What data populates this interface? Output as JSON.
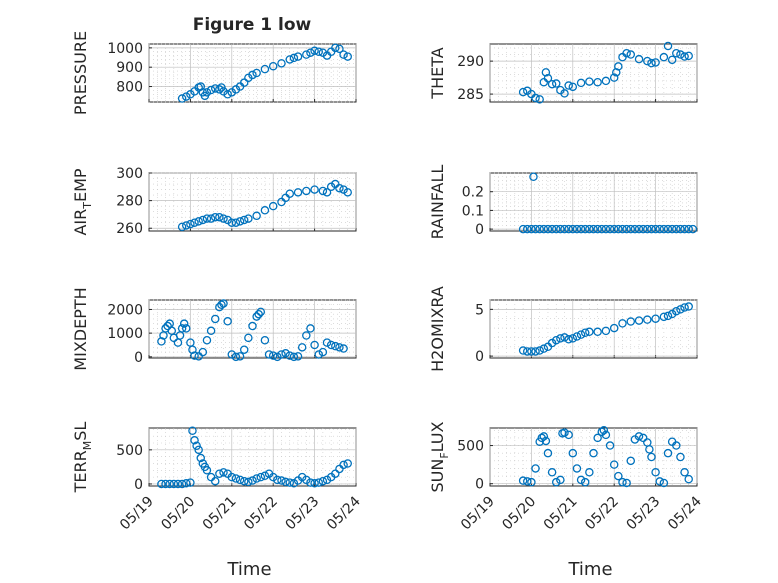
{
  "figure_title": "Figure 1 low",
  "x_axis_label": "Time",
  "x_tick_labels": [
    "05/19",
    "05/20",
    "05/21",
    "05/22",
    "05/23",
    "05/24"
  ],
  "marker_color": "#0072bd",
  "chart_data": [
    {
      "type": "scatter",
      "id": "pressure",
      "title": "Figure 1 low",
      "ylabel": "PRESSURE",
      "xlabel": "",
      "grid": true,
      "xlim": [
        "05/19",
        "05/24"
      ],
      "ylim": [
        720,
        1020
      ],
      "yticks": [
        800,
        900,
        1000
      ],
      "ytick_labels": [
        "800",
        "900",
        "1000"
      ],
      "series": [
        {
          "x": [
            0.8,
            0.9,
            1.0,
            1.1,
            1.2,
            1.25,
            1.3,
            1.35,
            1.4,
            1.5,
            1.6,
            1.7,
            1.75,
            1.8,
            1.9,
            2.0,
            2.1,
            2.2,
            2.3,
            2.4,
            2.5,
            2.6,
            2.8,
            3.0,
            3.2,
            3.4,
            3.5,
            3.6,
            3.8,
            3.9,
            4.0,
            4.1,
            4.2,
            4.3,
            4.4,
            4.5,
            4.6,
            4.7,
            4.8
          ],
          "y": [
            738,
            748,
            760,
            775,
            795,
            800,
            770,
            752,
            770,
            782,
            790,
            785,
            795,
            775,
            760,
            770,
            785,
            800,
            820,
            845,
            860,
            870,
            890,
            905,
            920,
            940,
            948,
            955,
            965,
            975,
            985,
            980,
            975,
            960,
            980,
            1000,
            995,
            965,
            955
          ]
        }
      ]
    },
    {
      "type": "scatter",
      "id": "theta",
      "ylabel": "THETA",
      "xlabel": "",
      "grid": true,
      "xlim": [
        "05/19",
        "05/24"
      ],
      "ylim": [
        283.8,
        292.6
      ],
      "yticks": [
        285,
        290
      ],
      "ytick_labels": [
        "285",
        "290"
      ],
      "series": [
        {
          "x": [
            0.8,
            0.9,
            1.0,
            1.1,
            1.2,
            1.3,
            1.35,
            1.4,
            1.5,
            1.6,
            1.7,
            1.8,
            1.9,
            2.0,
            2.2,
            2.4,
            2.6,
            2.8,
            3.0,
            3.05,
            3.1,
            3.2,
            3.3,
            3.4,
            3.6,
            3.8,
            3.9,
            4.0,
            4.2,
            4.3,
            4.4,
            4.5,
            4.6,
            4.7,
            4.8
          ],
          "y": [
            285.3,
            285.5,
            285.0,
            284.4,
            284.2,
            286.8,
            288.3,
            287.4,
            286.5,
            286.6,
            285.6,
            285.1,
            286.3,
            286.1,
            286.7,
            286.9,
            286.8,
            287.0,
            287.5,
            288.3,
            289.2,
            290.6,
            291.2,
            291.0,
            290.3,
            290.0,
            289.7,
            289.8,
            290.6,
            292.3,
            290.2,
            291.2,
            291.0,
            290.7,
            290.8
          ]
        }
      ]
    },
    {
      "type": "scatter",
      "id": "air-temp",
      "ylabel": "AIR_TEMP",
      "ylabel_main": "AIR",
      "ylabel_sub": "T",
      "ylabel_rest": "EMP",
      "xlabel": "",
      "grid": true,
      "xlim": [
        "05/19",
        "05/24"
      ],
      "ylim": [
        258,
        300
      ],
      "yticks": [
        260,
        280,
        300
      ],
      "ytick_labels": [
        "260",
        "280",
        "300"
      ],
      "series": [
        {
          "x": [
            0.8,
            0.9,
            1.0,
            1.1,
            1.2,
            1.3,
            1.4,
            1.5,
            1.6,
            1.7,
            1.8,
            1.9,
            2.0,
            2.1,
            2.2,
            2.3,
            2.4,
            2.6,
            2.8,
            3.0,
            3.2,
            3.3,
            3.4,
            3.6,
            3.8,
            4.0,
            4.2,
            4.3,
            4.4,
            4.5,
            4.6,
            4.7,
            4.8
          ],
          "y": [
            261,
            262,
            263,
            264,
            265,
            266,
            267,
            267,
            268,
            268,
            267,
            266,
            264,
            264,
            265,
            266,
            267,
            269,
            273,
            276,
            279,
            282,
            285,
            286,
            287,
            288,
            287,
            286,
            290,
            292,
            289,
            288,
            286
          ]
        }
      ]
    },
    {
      "type": "scatter",
      "id": "rainfall",
      "ylabel": "RAINFALL",
      "xlabel": "",
      "grid": true,
      "xlim": [
        "05/19",
        "05/24"
      ],
      "ylim": [
        -0.01,
        0.3
      ],
      "yticks": [
        0,
        0.1,
        0.2
      ],
      "ytick_labels": [
        "0",
        "0.1",
        "0.2"
      ],
      "series": [
        {
          "x": [
            0.8,
            0.9,
            1.0,
            1.05,
            1.1,
            1.2,
            1.3,
            1.4,
            1.5,
            1.6,
            1.7,
            1.8,
            1.9,
            2.0,
            2.1,
            2.2,
            2.3,
            2.4,
            2.5,
            2.6,
            2.7,
            2.8,
            2.9,
            3.0,
            3.1,
            3.2,
            3.3,
            3.4,
            3.5,
            3.6,
            3.7,
            3.8,
            3.9,
            4.0,
            4.1,
            4.2,
            4.3,
            4.4,
            4.5,
            4.6,
            4.7,
            4.8,
            4.9
          ],
          "y": [
            0,
            0,
            0,
            0.28,
            0,
            0,
            0,
            0,
            0,
            0,
            0,
            0,
            0,
            0,
            0,
            0,
            0,
            0,
            0,
            0,
            0,
            0,
            0,
            0,
            0,
            0,
            0,
            0,
            0,
            0,
            0,
            0,
            0,
            0,
            0,
            0,
            0,
            0,
            0,
            0,
            0,
            0,
            0
          ]
        }
      ]
    },
    {
      "type": "scatter",
      "id": "mixdepth",
      "ylabel": "MIXDEPTH",
      "xlabel": "",
      "grid": true,
      "xlim": [
        "05/19",
        "05/24"
      ],
      "ylim": [
        -50,
        2400
      ],
      "yticks": [
        0,
        1000,
        2000
      ],
      "ytick_labels": [
        "0",
        "1000",
        "2000"
      ],
      "series": [
        {
          "x": [
            0.3,
            0.35,
            0.4,
            0.45,
            0.5,
            0.55,
            0.6,
            0.7,
            0.75,
            0.8,
            0.85,
            0.9,
            1.0,
            1.05,
            1.1,
            1.2,
            1.3,
            1.4,
            1.5,
            1.6,
            1.7,
            1.75,
            1.8,
            1.9,
            2.0,
            2.1,
            2.2,
            2.3,
            2.4,
            2.5,
            2.6,
            2.65,
            2.7,
            2.8,
            2.9,
            3.0,
            3.1,
            3.2,
            3.3,
            3.4,
            3.5,
            3.6,
            3.7,
            3.8,
            3.9,
            4.0,
            4.1,
            4.2,
            4.3,
            4.4,
            4.5,
            4.6,
            4.7
          ],
          "y": [
            650,
            900,
            1200,
            1300,
            1400,
            1100,
            800,
            600,
            900,
            1200,
            1400,
            1200,
            600,
            300,
            50,
            20,
            200,
            700,
            1100,
            1600,
            2100,
            2200,
            2250,
            1500,
            100,
            0,
            20,
            300,
            800,
            1300,
            1700,
            1800,
            1900,
            700,
            100,
            50,
            0,
            100,
            150,
            50,
            0,
            20,
            400,
            900,
            1200,
            500,
            100,
            200,
            600,
            500,
            450,
            400,
            350
          ]
        }
      ]
    },
    {
      "type": "scatter",
      "id": "h2omixra",
      "ylabel": "H2OMIXRA",
      "xlabel": "",
      "grid": true,
      "xlim": [
        "05/19",
        "05/24"
      ],
      "ylim": [
        -0.2,
        6
      ],
      "yticks": [
        0,
        5
      ],
      "ytick_labels": [
        "0",
        "5"
      ],
      "series": [
        {
          "x": [
            0.8,
            0.9,
            1.0,
            1.1,
            1.2,
            1.3,
            1.4,
            1.5,
            1.6,
            1.7,
            1.8,
            1.9,
            2.0,
            2.1,
            2.2,
            2.3,
            2.4,
            2.6,
            2.8,
            3.0,
            3.2,
            3.4,
            3.6,
            3.8,
            4.0,
            4.2,
            4.3,
            4.4,
            4.5,
            4.6,
            4.7,
            4.8
          ],
          "y": [
            0.6,
            0.5,
            0.5,
            0.5,
            0.6,
            0.8,
            1.0,
            1.4,
            1.7,
            1.9,
            2.0,
            1.8,
            1.9,
            2.1,
            2.3,
            2.5,
            2.6,
            2.6,
            2.7,
            3.0,
            3.5,
            3.7,
            3.8,
            3.9,
            4.0,
            4.2,
            4.3,
            4.5,
            4.8,
            5.0,
            5.2,
            5.3
          ]
        }
      ]
    },
    {
      "type": "scatter",
      "id": "terr-msl",
      "ylabel": "TERR_MSL",
      "ylabel_main": "TERR",
      "ylabel_sub": "M",
      "ylabel_rest": "SL",
      "xlabel": "Time",
      "grid": true,
      "xlim": [
        "05/19",
        "05/24"
      ],
      "ylim": [
        -30,
        820
      ],
      "yticks": [
        0,
        500
      ],
      "ytick_labels": [
        "0",
        "500"
      ],
      "series": [
        {
          "x": [
            0.3,
            0.4,
            0.5,
            0.6,
            0.7,
            0.8,
            0.9,
            1.0,
            1.05,
            1.1,
            1.15,
            1.2,
            1.25,
            1.3,
            1.35,
            1.4,
            1.5,
            1.6,
            1.7,
            1.8,
            1.9,
            2.0,
            2.1,
            2.2,
            2.3,
            2.4,
            2.5,
            2.6,
            2.7,
            2.8,
            2.9,
            3.0,
            3.1,
            3.2,
            3.3,
            3.4,
            3.5,
            3.6,
            3.7,
            3.8,
            3.9,
            4.0,
            4.1,
            4.2,
            4.3,
            4.4,
            4.5,
            4.6,
            4.7,
            4.8
          ],
          "y": [
            0,
            0,
            0,
            0,
            0,
            0,
            10,
            20,
            780,
            640,
            560,
            500,
            380,
            300,
            250,
            200,
            100,
            40,
            150,
            170,
            150,
            100,
            80,
            60,
            40,
            30,
            50,
            80,
            100,
            120,
            150,
            100,
            60,
            50,
            30,
            20,
            10,
            50,
            100,
            60,
            20,
            10,
            20,
            40,
            60,
            100,
            150,
            220,
            280,
            300
          ]
        }
      ]
    },
    {
      "type": "scatter",
      "id": "sun-flux",
      "ylabel": "SUN_FLUX",
      "ylabel_main": "SUN",
      "ylabel_sub": "F",
      "ylabel_rest": "LUX",
      "xlabel": "Time",
      "grid": true,
      "xlim": [
        "05/19",
        "05/24"
      ],
      "ylim": [
        -30,
        730
      ],
      "yticks": [
        0,
        500
      ],
      "ytick_labels": [
        "0",
        "500"
      ],
      "series": [
        {
          "x": [
            0.8,
            0.9,
            1.0,
            1.1,
            1.2,
            1.25,
            1.3,
            1.35,
            1.4,
            1.5,
            1.6,
            1.7,
            1.75,
            1.8,
            1.9,
            2.0,
            2.1,
            2.2,
            2.3,
            2.4,
            2.5,
            2.6,
            2.7,
            2.75,
            2.8,
            2.9,
            3.0,
            3.1,
            3.2,
            3.3,
            3.4,
            3.5,
            3.6,
            3.7,
            3.8,
            3.85,
            3.9,
            4.0,
            4.1,
            4.2,
            4.3,
            4.4,
            4.5,
            4.6,
            4.7,
            4.8
          ],
          "y": [
            40,
            30,
            20,
            200,
            550,
            600,
            620,
            560,
            400,
            150,
            20,
            50,
            660,
            670,
            640,
            400,
            200,
            50,
            20,
            150,
            400,
            600,
            680,
            700,
            640,
            500,
            250,
            100,
            20,
            10,
            300,
            580,
            620,
            600,
            540,
            450,
            350,
            150,
            30,
            10,
            400,
            550,
            500,
            350,
            150,
            60
          ]
        }
      ]
    }
  ]
}
